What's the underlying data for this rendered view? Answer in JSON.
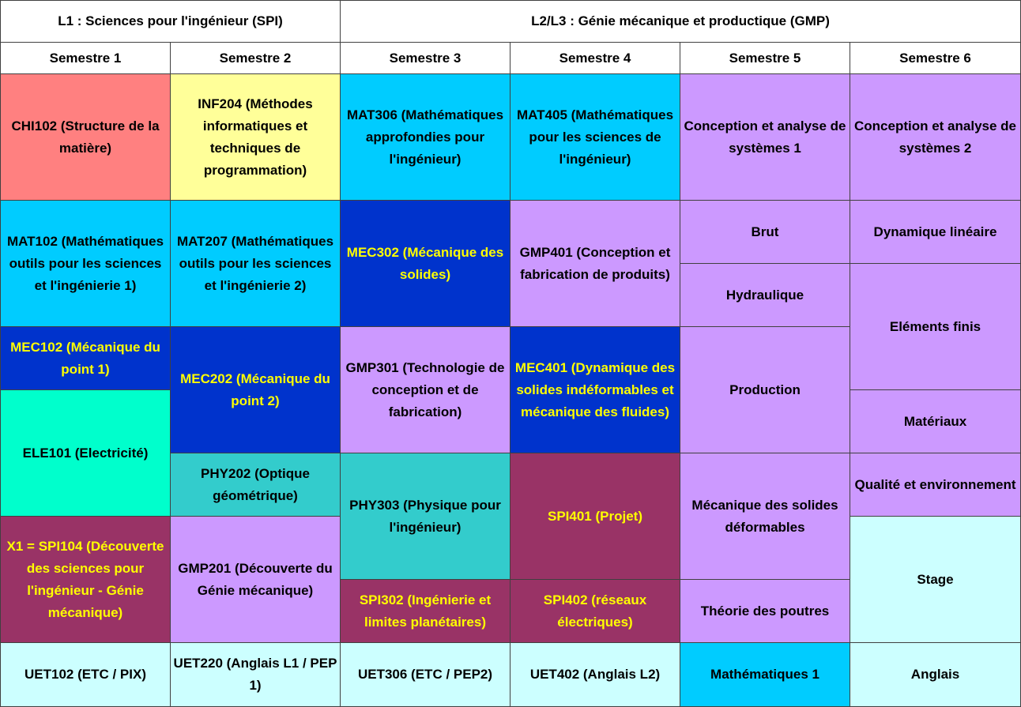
{
  "colors": {
    "salmon": "#ff8080",
    "yellow": "#ffff99",
    "cyan": "#00ccff",
    "navy": "#0033cc",
    "lavender": "#cc99ff",
    "aquamarine": "#00ffcc",
    "teal": "#33cccc",
    "maroon": "#993366",
    "lightcyan": "#ccffff",
    "white": "#ffffff",
    "yellowText": "#ffff00"
  },
  "headers": {
    "l1": "L1 : Sciences pour l'ingénieur (SPI)",
    "l23": "L2/L3 : Génie mécanique et productique (GMP)",
    "semesters": [
      "Semestre 1",
      "Semestre 2",
      "Semestre 3",
      "Semestre 4",
      "Semestre 5",
      "Semestre 6"
    ]
  },
  "cells": {
    "s1": [
      "CHI102 (Structure de la matière)",
      "MAT102 (Mathématiques outils pour les sciences et l'ingénierie 1)",
      "MEC102 (Mécanique du point 1)",
      "ELE101 (Electricité)",
      "X1 = SPI104 (Découverte des sciences pour l'ingénieur - Génie mécanique)",
      "UET102 (ETC / PIX)"
    ],
    "s2": [
      "INF204 (Méthodes informatiques et techniques de programmation)",
      "MAT207 (Mathématiques outils pour les sciences et l'ingénierie 2)",
      "MEC202 (Mécanique du point 2)",
      "PHY202 (Optique géométrique)",
      "GMP201 (Découverte du Génie mécanique)",
      "UET220 (Anglais L1 / PEP 1)"
    ],
    "s3": [
      "MAT306 (Mathématiques approfondies pour l'ingénieur)",
      "MEC302 (Mécanique des solides)",
      "GMP301 (Technologie de conception et de fabrication)",
      "PHY303 (Physique pour l'ingénieur)",
      "SPI302 (Ingénierie et limites planétaires)",
      "UET306 (ETC / PEP2)"
    ],
    "s4": [
      "MAT405 (Mathématiques pour les sciences de l'ingénieur)",
      "GMP401 (Conception et fabrication de produits)",
      "MEC401 (Dynamique des solides indéformables et mécanique des fluides)",
      "SPI401 (Projet)",
      "SPI402 (réseaux électriques)",
      "UET402 (Anglais L2)"
    ],
    "s5": [
      "Conception et analyse de systèmes 1",
      "Brut",
      "Hydraulique",
      "Production",
      "Mécanique des solides déformables",
      "Théorie des poutres",
      "Mathématiques 1"
    ],
    "s6": [
      "Conception et analyse de systèmes 2",
      "Dynamique linéaire",
      "Eléments finis",
      "Matériaux",
      "Qualité et environnement",
      "Stage",
      "Anglais"
    ]
  }
}
